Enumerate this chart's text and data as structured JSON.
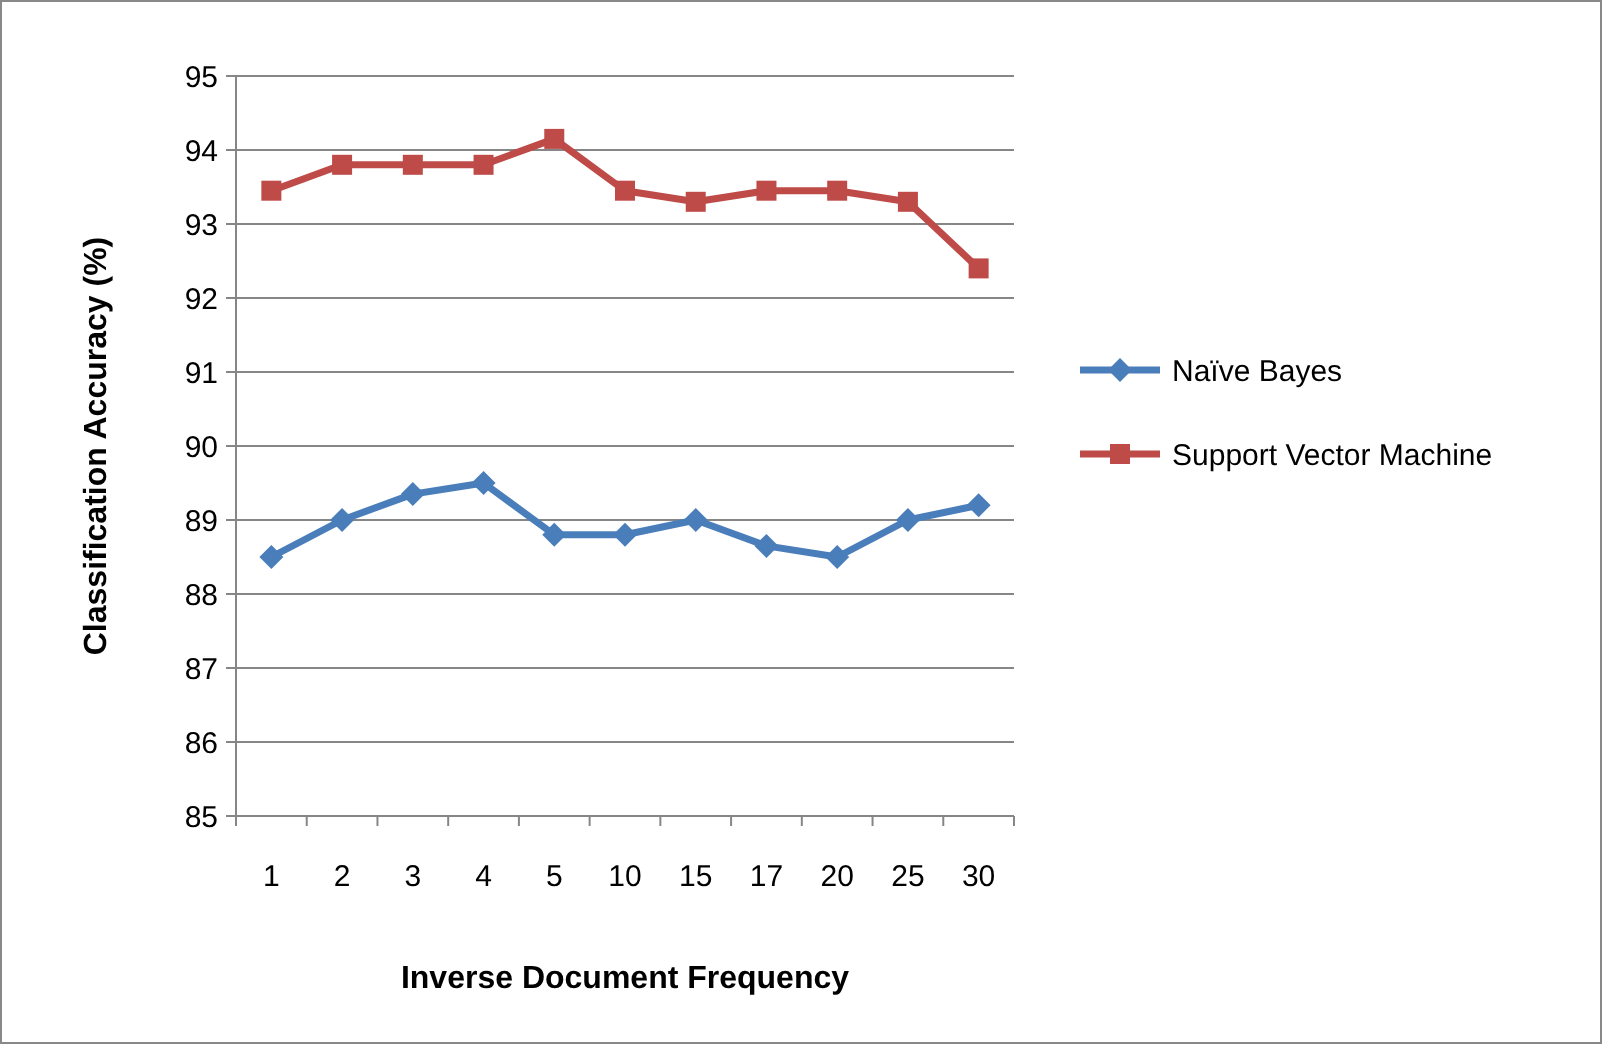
{
  "chart_data": {
    "type": "line",
    "xlabel": "Inverse Document Frequency",
    "ylabel": "Classification Accuracy (%)",
    "categories": [
      "1",
      "2",
      "3",
      "4",
      "5",
      "10",
      "15",
      "17",
      "20",
      "25",
      "30"
    ],
    "series": [
      {
        "name": "Naïve Bayes",
        "color": "#4a7ebb",
        "marker": "diamond",
        "values": [
          88.5,
          89.0,
          89.35,
          89.5,
          88.8,
          88.8,
          89.0,
          88.65,
          88.5,
          89.0,
          89.2
        ]
      },
      {
        "name": "Support Vector Machine",
        "color": "#be4b48",
        "marker": "square",
        "values": [
          93.45,
          93.8,
          93.8,
          93.8,
          94.15,
          93.45,
          93.3,
          93.45,
          93.45,
          93.3,
          92.4
        ]
      }
    ],
    "ylim": [
      85,
      95
    ],
    "yticks": [
      85,
      86,
      87,
      88,
      89,
      90,
      91,
      92,
      93,
      94,
      95
    ],
    "grid": "y",
    "legend": "right",
    "line_style": "solid"
  }
}
